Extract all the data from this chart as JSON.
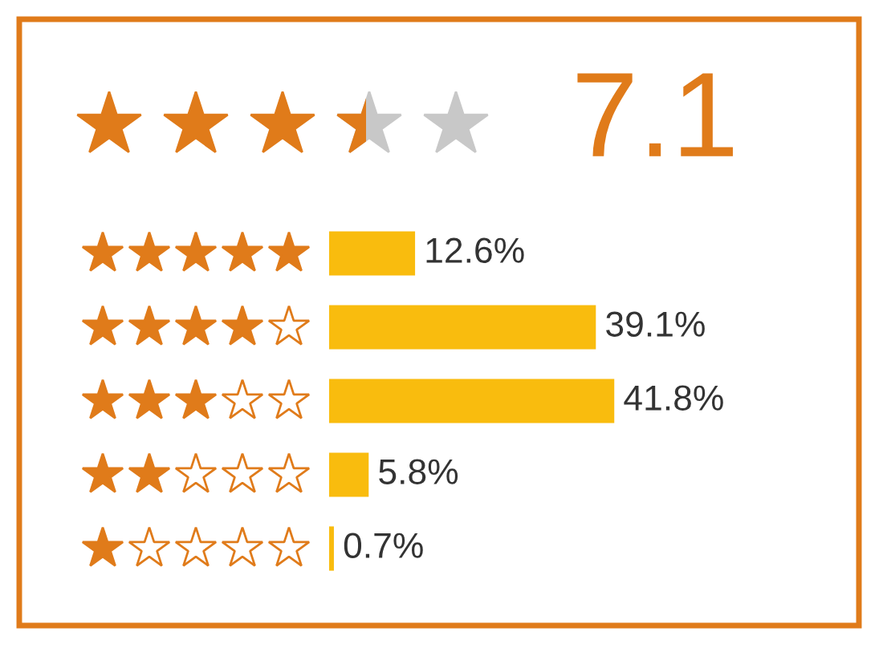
{
  "chart_data": {
    "type": "bar",
    "orientation": "horizontal",
    "title": "7.1",
    "categories": [
      null,
      null,
      null,
      null,
      null
    ],
    "values": [
      12.6,
      39.1,
      41.8,
      5.8,
      0.7
    ],
    "value_labels": [
      "12.6%",
      "39.1%",
      "41.8%",
      "5.8%",
      "0.7%"
    ],
    "color": "#f9bc0e",
    "grid": false,
    "legend": false
  }
}
